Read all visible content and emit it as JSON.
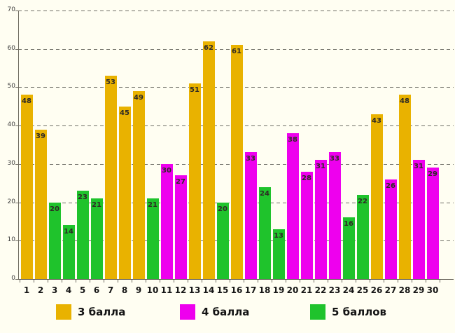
{
  "chart_data": {
    "type": "bar",
    "title": "",
    "xlabel": "",
    "ylabel": "",
    "categories": [
      "1",
      "2",
      "3",
      "4",
      "5",
      "6",
      "7",
      "8",
      "9",
      "10",
      "11",
      "12",
      "13",
      "14",
      "15",
      "16",
      "17",
      "18",
      "19",
      "20",
      "21",
      "22",
      "23",
      "24",
      "25",
      "26",
      "27",
      "28",
      "29",
      "30"
    ],
    "values": [
      48,
      39,
      20,
      14,
      23,
      21,
      53,
      45,
      49,
      21,
      30,
      27,
      51,
      62,
      20,
      61,
      33,
      24,
      13,
      38,
      28,
      31,
      33,
      16,
      22,
      43,
      26,
      48,
      31,
      29
    ],
    "bar_series_index": [
      0,
      0,
      2,
      2,
      2,
      2,
      0,
      0,
      0,
      2,
      1,
      1,
      0,
      0,
      2,
      0,
      1,
      2,
      2,
      1,
      1,
      1,
      1,
      2,
      2,
      0,
      1,
      0,
      1,
      1
    ],
    "ylim": [
      0,
      70
    ],
    "yticks": [
      0,
      10,
      20,
      30,
      40,
      50,
      60,
      70
    ],
    "grid": "horizontal-dashed",
    "legend_position": "bottom",
    "legend": [
      {
        "label": "3 балла",
        "color": "#E9B200"
      },
      {
        "label": "4 балла",
        "color": "#EE00EE"
      },
      {
        "label": "5 баллов",
        "color": "#1FC32C"
      }
    ]
  },
  "colors": {
    "background": "#FFFEF2",
    "grid": "#6e6e66",
    "axis": "#6e6a60",
    "bar_value_text": "#2e2a24",
    "x_label_text": "#141414",
    "y_label_text": "#3c3c3c"
  }
}
